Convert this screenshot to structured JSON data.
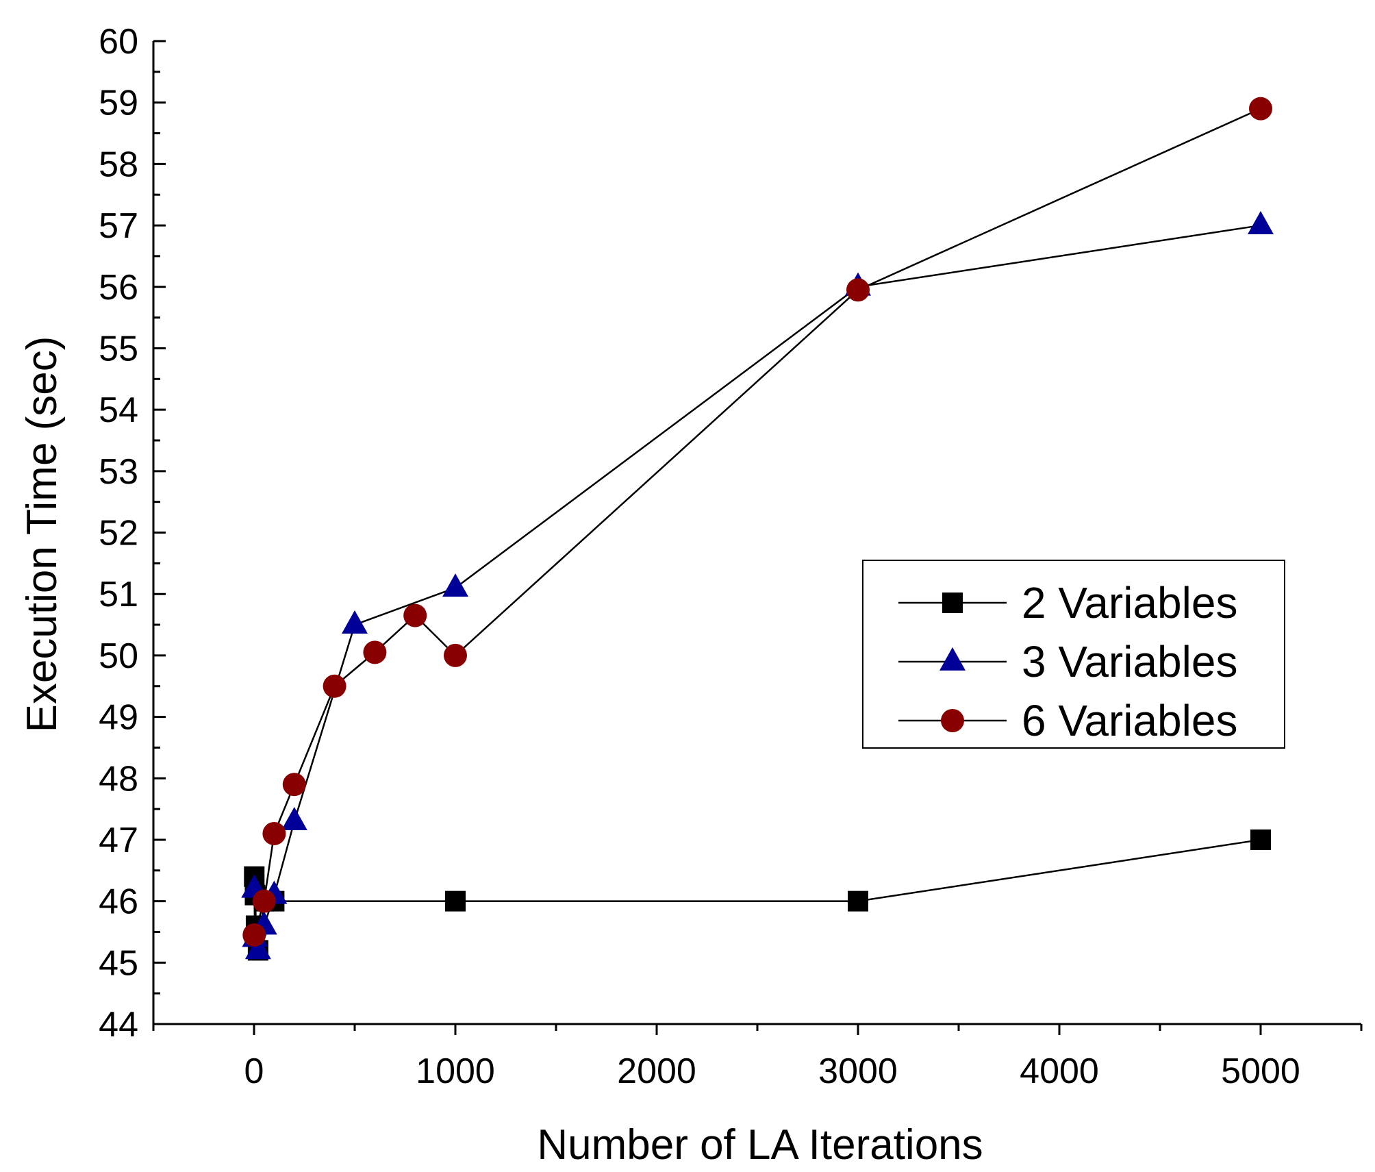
{
  "chart_data": {
    "type": "line",
    "title": "",
    "xlabel": "Number of LA Iterations",
    "ylabel": "Execution Time (sec)",
    "xlim": [
      -500,
      5500
    ],
    "ylim": [
      44,
      60
    ],
    "xticks": [
      0,
      1000,
      2000,
      3000,
      4000,
      5000
    ],
    "yticks": [
      44,
      45,
      46,
      47,
      48,
      49,
      50,
      51,
      52,
      53,
      54,
      55,
      56,
      57,
      58,
      59,
      60
    ],
    "legend_position": "center-right",
    "series": [
      {
        "name": "2 Variables",
        "marker": "square",
        "color": "#000000",
        "x": [
          1,
          5,
          10,
          20,
          50,
          100,
          1000,
          3000,
          5000
        ],
        "y": [
          46.4,
          46.1,
          45.6,
          45.2,
          46.0,
          46.0,
          46.0,
          46.0,
          47.0
        ]
      },
      {
        "name": "3 Variables",
        "marker": "triangle",
        "color": "#000099",
        "x": [
          1,
          5,
          20,
          50,
          100,
          200,
          500,
          1000,
          3000,
          5000
        ],
        "y": [
          46.2,
          45.4,
          45.2,
          45.6,
          46.1,
          47.3,
          50.5,
          51.1,
          56.0,
          57.0
        ]
      },
      {
        "name": "6 Variables",
        "marker": "circle",
        "color": "#880000",
        "x": [
          1,
          50,
          100,
          200,
          400,
          600,
          800,
          1000,
          3000,
          5000
        ],
        "y": [
          45.45,
          46.0,
          47.1,
          47.9,
          49.5,
          50.05,
          50.65,
          50.0,
          55.95,
          58.9
        ]
      }
    ]
  }
}
